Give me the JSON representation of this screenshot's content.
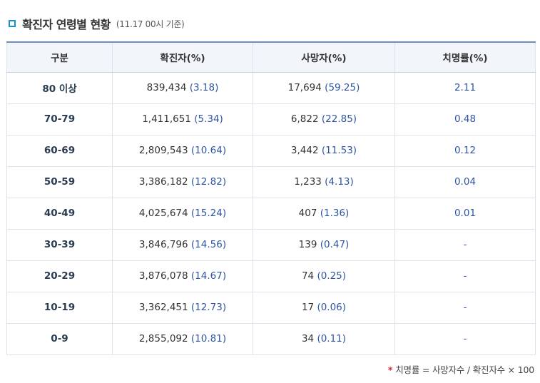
{
  "title": "확진자 연령별 현황",
  "subtitle": "(11.17 00시 기준)",
  "headers": [
    "구분",
    "확진자(%)",
    "사망자(%)",
    "치명률(%)"
  ],
  "rows": [
    {
      "age": "80 이상",
      "cases": "839,434",
      "cases_pct": "(3.18)",
      "deaths": "17,694",
      "deaths_pct": "(59.25)",
      "rate": "2.11"
    },
    {
      "age": "70-79",
      "cases": "1,411,651",
      "cases_pct": "(5.34)",
      "deaths": "6,822",
      "deaths_pct": "(22.85)",
      "rate": "0.48"
    },
    {
      "age": "60-69",
      "cases": "2,809,543",
      "cases_pct": "(10.64)",
      "deaths": "3,442",
      "deaths_pct": "(11.53)",
      "rate": "0.12"
    },
    {
      "age": "50-59",
      "cases": "3,386,182",
      "cases_pct": "(12.82)",
      "deaths": "1,233",
      "deaths_pct": "(4.13)",
      "rate": "0.04"
    },
    {
      "age": "40-49",
      "cases": "4,025,674",
      "cases_pct": "(15.24)",
      "deaths": "407",
      "deaths_pct": "(1.36)",
      "rate": "0.01"
    },
    {
      "age": "30-39",
      "cases": "3,846,796",
      "cases_pct": "(14.56)",
      "deaths": "139",
      "deaths_pct": "(0.47)",
      "rate": "-"
    },
    {
      "age": "20-29",
      "cases": "3,876,078",
      "cases_pct": "(14.67)",
      "deaths": "74",
      "deaths_pct": "(0.25)",
      "rate": "-"
    },
    {
      "age": "10-19",
      "cases": "3,362,451",
      "cases_pct": "(12.73)",
      "deaths": "17",
      "deaths_pct": "(0.06)",
      "rate": "-"
    },
    {
      "age": "0-9",
      "cases": "2,855,092",
      "cases_pct": "(10.81)",
      "deaths": "34",
      "deaths_pct": "(0.11)",
      "rate": "-"
    }
  ],
  "footnote": {
    "mark": "*",
    "text": "치명률 = 사망자수 / 확진자수 × 100"
  },
  "colors": {
    "accent": "#1a8fd0",
    "value_blue": "#2d55a3",
    "header_bg": "#f2f6fa",
    "header_border": "#6d8fb5",
    "footnote_mark": "#e0242a"
  }
}
